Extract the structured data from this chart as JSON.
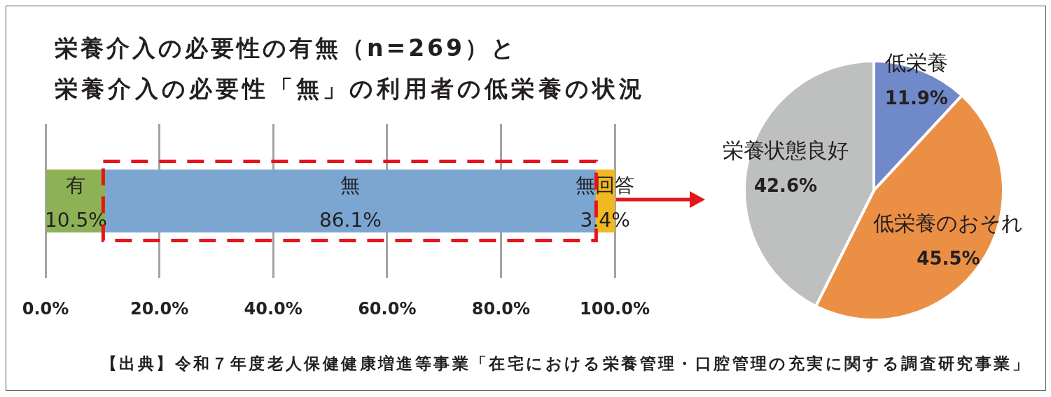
{
  "chart_data": [
    {
      "type": "bar",
      "orientation": "horizontal",
      "stacked": true,
      "title": "栄養介入の必要性の有無（n=269）と",
      "subtitle": "栄養介入の必要性「無」の利用者の低栄養の状況",
      "categories": [
        null
      ],
      "series": [
        {
          "name": "有",
          "color": "#8db255",
          "values": [
            10.5
          ],
          "value_labels": [
            "10.5%"
          ]
        },
        {
          "name": "無",
          "color": "#7ba6d1",
          "values": [
            86.1
          ],
          "value_labels": [
            "86.1%"
          ]
        },
        {
          "name": "無回答",
          "color": "#f2b822",
          "values": [
            3.4
          ],
          "value_labels": [
            "3.4%"
          ]
        }
      ],
      "xlim": [
        0,
        100
      ],
      "xticks": [
        {
          "value": 0,
          "label": "0.0%"
        },
        {
          "value": 20,
          "label": "20.0%"
        },
        {
          "value": 40,
          "label": "40.0%"
        },
        {
          "value": 60,
          "label": "60.0%"
        },
        {
          "value": 80,
          "label": "80.0%"
        },
        {
          "value": 100,
          "label": "100.0%"
        }
      ],
      "grid": "x",
      "annotations": [
        "【出典】令和７年度老人保健健康増進等事業「在宅における栄養管理・口腔管理の充実に関する調査研究事業」"
      ]
    },
    {
      "type": "pie",
      "categories": [
        "低栄養",
        "低栄養のおそれ",
        "栄養状態良好"
      ],
      "values": [
        11.9,
        45.5,
        42.6
      ],
      "colors": [
        "#7089c9",
        "#eb8f45",
        "#bebfbf"
      ],
      "value_labels": [
        "11.9%",
        "45.5%",
        "42.6%"
      ]
    }
  ]
}
